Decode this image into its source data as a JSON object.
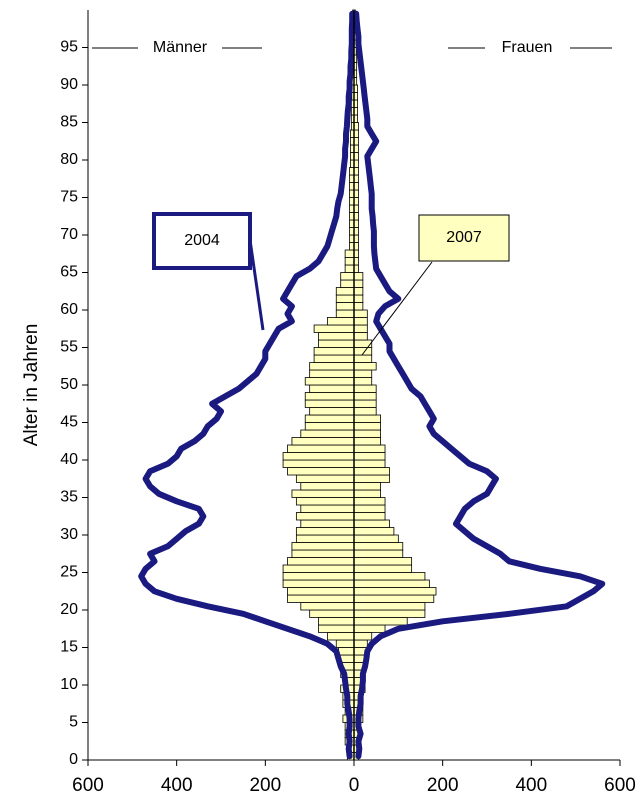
{
  "chart_data": {
    "type": "pyramid",
    "y_label": "Alter in Jahren",
    "side_labels": [
      "Männer",
      "Frauen"
    ],
    "ages": [
      0,
      1,
      2,
      3,
      4,
      5,
      6,
      7,
      8,
      9,
      10,
      11,
      12,
      13,
      14,
      15,
      16,
      17,
      18,
      19,
      20,
      21,
      22,
      23,
      24,
      25,
      26,
      27,
      28,
      29,
      30,
      31,
      32,
      33,
      34,
      35,
      36,
      37,
      38,
      39,
      40,
      41,
      42,
      43,
      44,
      45,
      46,
      47,
      48,
      49,
      50,
      51,
      52,
      53,
      54,
      55,
      56,
      57,
      58,
      59,
      60,
      61,
      62,
      63,
      64,
      65,
      66,
      67,
      68,
      69,
      70,
      71,
      72,
      73,
      74,
      75,
      76,
      77,
      78,
      79,
      80,
      81,
      82,
      83,
      84,
      85,
      86,
      87,
      88,
      89,
      90,
      91,
      92,
      93,
      94,
      95,
      96,
      97,
      98,
      99
    ],
    "series": [
      {
        "name": "2007",
        "kind": "bar",
        "color": "#ffffc0",
        "men": [
          -15,
          -15,
          -20,
          -20,
          -20,
          -25,
          -20,
          -25,
          -25,
          -30,
          -25,
          -30,
          -30,
          -35,
          -35,
          -40,
          -60,
          -80,
          -80,
          -100,
          -120,
          -150,
          -150,
          -160,
          -160,
          -160,
          -150,
          -140,
          -140,
          -130,
          -130,
          -120,
          -130,
          -120,
          -130,
          -140,
          -120,
          -130,
          -150,
          -160,
          -160,
          -150,
          -140,
          -120,
          -110,
          -110,
          -100,
          -110,
          -110,
          -100,
          -110,
          -100,
          -100,
          -90,
          -90,
          -80,
          -80,
          -90,
          -60,
          -40,
          -40,
          -40,
          -40,
          -30,
          -30,
          -20,
          -20,
          -20,
          -10,
          -10,
          -10,
          -10,
          -10,
          -10,
          -10,
          -10,
          -10,
          -10,
          -10,
          -8,
          -8,
          -8,
          -8,
          -8,
          -6,
          -6,
          -6,
          -6,
          -5,
          -5,
          -5,
          -5,
          -5,
          -4,
          -4,
          -4,
          -3,
          -3,
          -3,
          -3
        ],
        "women": [
          10,
          10,
          15,
          15,
          15,
          20,
          20,
          20,
          20,
          25,
          25,
          25,
          25,
          30,
          30,
          30,
          40,
          70,
          120,
          160,
          160,
          180,
          185,
          170,
          160,
          130,
          130,
          110,
          110,
          100,
          90,
          80,
          70,
          70,
          70,
          60,
          60,
          80,
          80,
          70,
          70,
          70,
          60,
          60,
          60,
          60,
          50,
          50,
          50,
          50,
          40,
          40,
          50,
          40,
          40,
          40,
          30,
          30,
          30,
          30,
          20,
          20,
          20,
          20,
          20,
          10,
          10,
          10,
          10,
          10,
          10,
          10,
          10,
          10,
          10,
          10,
          10,
          10,
          10,
          10,
          10,
          10,
          10,
          10,
          10,
          8,
          8,
          8,
          8,
          8,
          6,
          6,
          6,
          6,
          5,
          5,
          5,
          4,
          4,
          3
        ]
      },
      {
        "name": "2004",
        "kind": "line",
        "color": "#1a1a80",
        "men": [
          -10,
          -12,
          -10,
          -12,
          -10,
          -10,
          -12,
          -15,
          -15,
          -18,
          -20,
          -22,
          -30,
          -35,
          -40,
          -60,
          -100,
          -150,
          -200,
          -250,
          -330,
          -400,
          -450,
          -470,
          -480,
          -470,
          -450,
          -460,
          -420,
          -400,
          -380,
          -350,
          -340,
          -350,
          -400,
          -440,
          -460,
          -470,
          -460,
          -420,
          -400,
          -390,
          -360,
          -340,
          -330,
          -310,
          -300,
          -320,
          -290,
          -260,
          -240,
          -220,
          -210,
          -200,
          -200,
          -190,
          -180,
          -170,
          -140,
          -150,
          -140,
          -160,
          -150,
          -140,
          -130,
          -100,
          -80,
          -70,
          -60,
          -55,
          -50,
          -45,
          -40,
          -38,
          -35,
          -30,
          -28,
          -26,
          -24,
          -22,
          -20,
          -20,
          -18,
          -18,
          -16,
          -15,
          -14,
          -12,
          -12,
          -10,
          -10,
          -8,
          -8,
          -6,
          -6,
          -5,
          -5,
          -5,
          -4,
          -4
        ],
        "women": [
          10,
          12,
          10,
          15,
          10,
          10,
          12,
          15,
          15,
          18,
          20,
          20,
          25,
          28,
          30,
          40,
          60,
          100,
          200,
          350,
          480,
          510,
          540,
          560,
          510,
          420,
          350,
          330,
          300,
          270,
          250,
          230,
          240,
          250,
          270,
          300,
          310,
          320,
          300,
          260,
          240,
          220,
          200,
          180,
          170,
          180,
          170,
          160,
          150,
          130,
          120,
          110,
          100,
          90,
          80,
          80,
          70,
          60,
          50,
          55,
          70,
          100,
          80,
          70,
          60,
          50,
          48,
          46,
          45,
          45,
          45,
          43,
          42,
          40,
          40,
          40,
          38,
          36,
          34,
          32,
          30,
          40,
          50,
          40,
          30,
          30,
          28,
          26,
          24,
          22,
          20,
          18,
          16,
          14,
          12,
          10,
          10,
          8,
          6,
          5
        ]
      }
    ],
    "xlim": [
      -600,
      600
    ],
    "xticks": [
      {
        "value": -600,
        "label": "600"
      },
      {
        "value": -400,
        "label": "400"
      },
      {
        "value": -200,
        "label": "200"
      },
      0,
      200,
      400,
      600
    ],
    "ylim": [
      0,
      100
    ],
    "yticks": [
      0,
      5,
      10,
      15,
      20,
      25,
      30,
      35,
      40,
      45,
      50,
      55,
      60,
      65,
      70,
      75,
      80,
      85,
      90,
      95
    ]
  }
}
